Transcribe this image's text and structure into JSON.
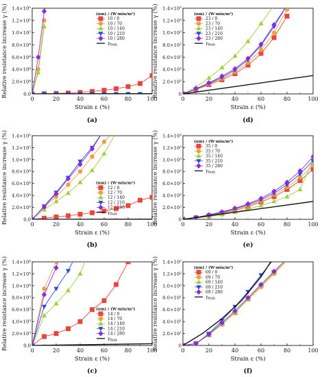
{
  "chart_data": [
    {
      "type": "line",
      "panel_label": "(a)",
      "xlabel": "Strain ε (%)",
      "ylabel": "Relative resistance increase γ (%)",
      "xlim": [
        0,
        100
      ],
      "ylim": [
        0,
        140000
      ],
      "x_ticks": [
        "0",
        "20",
        "40",
        "60",
        "80",
        "100"
      ],
      "y_ticks": [
        "0.0",
        "2.0×10⁴",
        "4.0×10⁴",
        "6.0×10⁴",
        "8.0×10⁴",
        "1.0×10⁵",
        "1.2×10⁵",
        "1.4×10⁵"
      ],
      "legend_header": "(nm) / (W·min/m²)",
      "legend_position": "top-right",
      "series": [
        {
          "name": "10 / 0",
          "color": "#e8453c",
          "marker": "square",
          "x": [
            0,
            10,
            20,
            30,
            40,
            50,
            60,
            70,
            80,
            90,
            100
          ],
          "y": [
            0,
            300,
            800,
            1500,
            2500,
            4000,
            6000,
            8500,
            12000,
            17000,
            30000
          ]
        },
        {
          "name": "10 / 70",
          "color": "#e8a33c",
          "marker": "circle",
          "x": [
            0,
            5,
            10
          ],
          "y": [
            0,
            40000,
            120000
          ]
        },
        {
          "name": "10 / 140",
          "color": "#9bd13a",
          "marker": "triangle-up",
          "x": [
            0,
            5,
            10
          ],
          "y": [
            0,
            35000,
            110000
          ]
        },
        {
          "name": "10 / 210",
          "color": "#2a4bd7",
          "marker": "triangle-down",
          "x": [
            0,
            10,
            20,
            30,
            40,
            50,
            60,
            70,
            80,
            90
          ],
          "y": [
            0,
            100,
            100,
            100,
            100,
            100,
            100,
            100,
            100,
            100
          ]
        },
        {
          "name": "10 / 280",
          "color": "#8a2be2",
          "marker": "diamond",
          "x": [
            0,
            5,
            10,
            12
          ],
          "y": [
            0,
            60000,
            135000,
            145000
          ]
        },
        {
          "name": "γ_Bulk",
          "color": "#111111",
          "marker": "none",
          "x": [
            0,
            100
          ],
          "y": [
            0,
            300
          ]
        }
      ]
    },
    {
      "type": "line",
      "panel_label": "(d)",
      "xlabel": "Strain ε (%)",
      "ylabel": "Relative resistance increase γ (%)",
      "xlim": [
        0,
        100
      ],
      "ylim": [
        0,
        1400
      ],
      "x_ticks": [
        "0",
        "20",
        "40",
        "60",
        "80",
        "100"
      ],
      "y_ticks": [
        "0",
        "2.0×10²",
        "4.0×10²",
        "6.0×10²",
        "8.0×10²",
        "1.0×10³",
        "1.2×10³",
        "1.4×10³"
      ],
      "legend_header": "(nm) / (W·min/m²)",
      "legend_position": "top-left",
      "series": [
        {
          "name": "23 / 0",
          "color": "#e8453c",
          "marker": "square",
          "x": [
            0,
            10,
            20,
            30,
            40,
            50,
            60,
            70,
            80
          ],
          "y": [
            0,
            70,
            150,
            230,
            330,
            470,
            660,
            920,
            1270
          ]
        },
        {
          "name": "23 / 70",
          "color": "#e8a33c",
          "marker": "circle",
          "x": [
            0,
            10,
            20,
            30,
            40,
            50,
            60,
            70,
            80
          ],
          "y": [
            0,
            75,
            160,
            250,
            360,
            510,
            720,
            1000,
            1380
          ]
        },
        {
          "name": "23 / 140",
          "color": "#9bd13a",
          "marker": "triangle-up",
          "x": [
            0,
            10,
            20,
            30,
            40,
            50,
            60,
            70
          ],
          "y": [
            0,
            110,
            260,
            430,
            620,
            860,
            1150,
            1450
          ]
        },
        {
          "name": "23 / 210",
          "color": "#2a4bd7",
          "marker": "triangle-down",
          "x": [
            0,
            10,
            20,
            30,
            40,
            50,
            60,
            70,
            80
          ],
          "y": [
            0,
            80,
            170,
            270,
            390,
            560,
            790,
            1100,
            1450
          ]
        },
        {
          "name": "23 / 280",
          "color": "#8a2be2",
          "marker": "diamond",
          "x": [
            0,
            10,
            20,
            30,
            40,
            50,
            60,
            70,
            80
          ],
          "y": [
            0,
            85,
            180,
            290,
            410,
            580,
            810,
            1130,
            1450
          ]
        },
        {
          "name": "γ_Bulk",
          "color": "#111111",
          "marker": "none",
          "x": [
            0,
            100
          ],
          "y": [
            0,
            300
          ]
        }
      ]
    },
    {
      "type": "line",
      "panel_label": "(b)",
      "xlabel": "Strain ε (%)",
      "ylabel": "Relative resistance increase γ (%)",
      "xlim": [
        0,
        100
      ],
      "ylim": [
        0,
        140000
      ],
      "x_ticks": [
        "0",
        "20",
        "40",
        "60",
        "80",
        "100"
      ],
      "y_ticks": [
        "0.0",
        "2.0×10⁴",
        "4.0×10⁴",
        "6.0×10⁴",
        "8.0×10⁴",
        "1.0×10⁵",
        "1.2×10⁵",
        "1.4×10⁵"
      ],
      "legend_header": "(nm) / (W·min/m²)",
      "legend_position": "bottom-right",
      "series": [
        {
          "name": "12 / 0",
          "color": "#e8453c",
          "marker": "square",
          "x": [
            0,
            10,
            20,
            30,
            40,
            50,
            60,
            70,
            80,
            90,
            100
          ],
          "y": [
            0,
            2000,
            4000,
            6000,
            8500,
            11000,
            14000,
            18000,
            23000,
            32000,
            37000
          ]
        },
        {
          "name": "12 / 70",
          "color": "#e8a33c",
          "marker": "circle",
          "x": [
            0,
            10,
            20,
            30,
            40,
            50,
            60,
            70
          ],
          "y": [
            0,
            20000,
            38000,
            58000,
            80000,
            105000,
            130000,
            150000
          ]
        },
        {
          "name": "12 / 140",
          "color": "#9bd13a",
          "marker": "triangle-up",
          "x": [
            0,
            10,
            20,
            30,
            40,
            50,
            60,
            70
          ],
          "y": [
            0,
            16000,
            30000,
            44000,
            62000,
            82000,
            110000,
            145000
          ]
        },
        {
          "name": "12 / 210",
          "color": "#2a4bd7",
          "marker": "triangle-down",
          "x": [
            0,
            10,
            20,
            30,
            40,
            50,
            60
          ],
          "y": [
            0,
            22000,
            45000,
            70000,
            97000,
            120000,
            150000
          ]
        },
        {
          "name": "12 / 280",
          "color": "#8a2be2",
          "marker": "diamond",
          "x": [
            0,
            10,
            20,
            30,
            40,
            50,
            60
          ],
          "y": [
            0,
            21000,
            43000,
            68000,
            92000,
            118000,
            150000
          ]
        },
        {
          "name": "γ_Bulk",
          "color": "#111111",
          "marker": "none",
          "x": [
            0,
            100
          ],
          "y": [
            0,
            300
          ]
        }
      ]
    },
    {
      "type": "line",
      "panel_label": "(e)",
      "xlabel": "Strain ε (%)",
      "ylabel": "Relative resistance increase γ (%)",
      "xlim": [
        0,
        100
      ],
      "ylim": [
        0,
        1400
      ],
      "x_ticks": [
        "0",
        "20",
        "40",
        "60",
        "80",
        "100"
      ],
      "y_ticks": [
        "0",
        "2.0×10²",
        "4.0×10²",
        "6.0×10²",
        "8.0×10²",
        "1.0×10³",
        "1.2×10³",
        "1.4×10³"
      ],
      "legend_header": "(nm) / (W·min/m²)",
      "legend_position": "top-left",
      "series": [
        {
          "name": "35 / 0",
          "color": "#e8453c",
          "marker": "square",
          "x": [
            0,
            10,
            20,
            30,
            40,
            50,
            60,
            70,
            80,
            90,
            100
          ],
          "y": [
            0,
            25,
            60,
            100,
            150,
            210,
            290,
            380,
            500,
            650,
            840
          ]
        },
        {
          "name": "35 / 70",
          "color": "#e8a33c",
          "marker": "circle",
          "x": [
            0,
            10,
            20,
            30,
            40,
            50,
            60,
            70,
            80,
            90,
            100
          ],
          "y": [
            0,
            28,
            65,
            110,
            165,
            230,
            310,
            410,
            540,
            700,
            900
          ]
        },
        {
          "name": "35 / 140",
          "color": "#9bd13a",
          "marker": "triangle-up",
          "x": [
            0,
            10,
            20,
            30,
            40,
            50,
            60,
            70,
            80,
            90,
            100
          ],
          "y": [
            0,
            20,
            45,
            80,
            120,
            170,
            230,
            300,
            380,
            500,
            1000
          ]
        },
        {
          "name": "35 / 210",
          "color": "#2a4bd7",
          "marker": "triangle-down",
          "x": [
            0,
            10,
            20,
            30,
            40,
            50,
            60,
            70,
            80,
            90,
            100
          ],
          "y": [
            0,
            30,
            70,
            115,
            175,
            245,
            330,
            440,
            580,
            760,
            980
          ]
        },
        {
          "name": "35 / 280",
          "color": "#8a2be2",
          "marker": "diamond",
          "x": [
            0,
            10,
            20,
            30,
            40,
            50,
            60,
            70,
            80,
            90,
            100
          ],
          "y": [
            0,
            32,
            75,
            125,
            185,
            260,
            350,
            470,
            620,
            810,
            1050
          ]
        },
        {
          "name": "γ_Bulk",
          "color": "#111111",
          "marker": "none",
          "x": [
            0,
            100
          ],
          "y": [
            0,
            300
          ]
        }
      ]
    },
    {
      "type": "line",
      "panel_label": "(c)",
      "xlabel": "Strain ε (%)",
      "ylabel": "Relative resistance increase γ (%)",
      "xlim": [
        0,
        100
      ],
      "ylim": [
        0,
        14000
      ],
      "x_ticks": [
        "0",
        "20",
        "40",
        "60",
        "80",
        "100"
      ],
      "y_ticks": [
        "0.0",
        "2.0×10³",
        "4.0×10³",
        "6.0×10³",
        "8.0×10³",
        "1.0×10⁴",
        "1.2×10⁴",
        "1.4×10⁴"
      ],
      "legend_header": "(nm) / (W·min/m²)",
      "legend_position": "bottom-right",
      "series": [
        {
          "name": "14 / 0",
          "color": "#e8453c",
          "marker": "square",
          "x": [
            0,
            10,
            20,
            30,
            40,
            50,
            60,
            70,
            80
          ],
          "y": [
            0,
            1500,
            2000,
            2800,
            4000,
            6000,
            7500,
            10200,
            14000
          ]
        },
        {
          "name": "14 / 70",
          "color": "#e8a33c",
          "marker": "circle",
          "x": [
            0,
            10,
            20,
            25
          ],
          "y": [
            0,
            9500,
            14000,
            15000
          ]
        },
        {
          "name": "14 / 140",
          "color": "#9bd13a",
          "marker": "triangle-up",
          "x": [
            0,
            10,
            20,
            30,
            40,
            45
          ],
          "y": [
            0,
            5000,
            7000,
            9200,
            12000,
            14500
          ]
        },
        {
          "name": "14 / 210",
          "color": "#2a4bd7",
          "marker": "triangle-down",
          "x": [
            0,
            10,
            20,
            30,
            35
          ],
          "y": [
            0,
            6500,
            9500,
            12500,
            14500
          ]
        },
        {
          "name": "14 / 280",
          "color": "#8a2be2",
          "marker": "diamond",
          "x": [
            0,
            10,
            20,
            22
          ],
          "y": [
            0,
            8500,
            13000,
            14500
          ]
        },
        {
          "name": "γ_Bulk",
          "color": "#111111",
          "marker": "none",
          "x": [
            0,
            100
          ],
          "y": [
            0,
            300
          ]
        }
      ]
    },
    {
      "type": "line",
      "panel_label": "(f)",
      "xlabel": "Strain ε (%)",
      "ylabel": "Relative resistance increase γ (%)",
      "xlim": [
        0,
        100
      ],
      "ylim": [
        0,
        140
      ],
      "x_ticks": [
        "0",
        "20",
        "40",
        "60",
        "80",
        "100"
      ],
      "y_ticks": [
        "0",
        "2.0×10¹",
        "4.0×10¹",
        "6.0×10¹",
        "8.0×10¹",
        "1.0×10²",
        "1.2×10²",
        "1.4×10²"
      ],
      "legend_header": "(nm) / (W·min/m²)",
      "legend_position": "top-left",
      "series": [
        {
          "name": "69 / 0",
          "color": "#e8453c",
          "marker": "square",
          "x": [
            0,
            10,
            20,
            30,
            40,
            50,
            60,
            70,
            80
          ],
          "y": [
            0,
            3,
            18,
            36,
            55,
            78,
            100,
            122,
            145
          ]
        },
        {
          "name": "69 / 70",
          "color": "#e8a33c",
          "marker": "circle",
          "x": [
            0,
            10,
            20,
            30,
            40,
            50,
            60,
            70,
            80
          ],
          "y": [
            0,
            3,
            18,
            35,
            55,
            77,
            98,
            120,
            142
          ]
        },
        {
          "name": "69 / 140",
          "color": "#9bd13a",
          "marker": "triangle-up",
          "x": [
            0,
            10,
            20,
            30,
            40,
            50,
            60,
            70,
            80
          ],
          "y": [
            0,
            3,
            18,
            36,
            56,
            78,
            100,
            122,
            145
          ]
        },
        {
          "name": "69 / 210",
          "color": "#2a4bd7",
          "marker": "triangle-down",
          "x": [
            0,
            10,
            20,
            30,
            40,
            50,
            60,
            70
          ],
          "y": [
            0,
            3,
            20,
            42,
            65,
            90,
            118,
            145
          ]
        },
        {
          "name": "69 / 280",
          "color": "#8a2be2",
          "marker": "diamond",
          "x": [
            0,
            10,
            20,
            30,
            40,
            50,
            60,
            70,
            80
          ],
          "y": [
            0,
            3,
            19,
            38,
            58,
            80,
            102,
            124,
            145
          ]
        },
        {
          "name": "γ_Bulk",
          "color": "#111111",
          "marker": "none",
          "x": [
            0,
            15,
            30,
            45,
            60,
            75
          ],
          "y": [
            0,
            20,
            45,
            75,
            115,
            165
          ]
        }
      ]
    }
  ]
}
